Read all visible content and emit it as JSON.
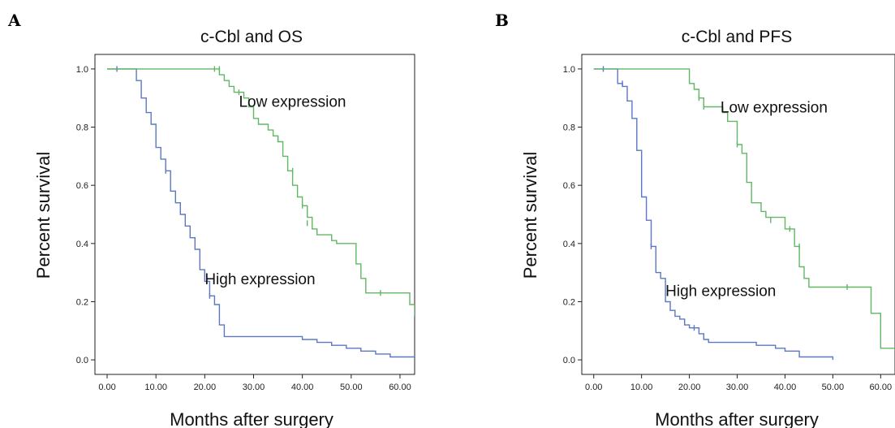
{
  "chart_data": [
    {
      "panel_label": "A",
      "type": "line",
      "title": "c-Cbl and OS",
      "xlabel": "Months after surgery",
      "ylabel": "Percent survival",
      "xlim": [
        -2.5,
        63
      ],
      "ylim": [
        -0.05,
        1.05
      ],
      "xticks": [
        "0.00",
        "10.00",
        "20.00",
        "30.00",
        "40.00",
        "50.00",
        "60.00"
      ],
      "yticks": [
        "0.0",
        "0.2",
        "0.4",
        "0.6",
        "0.8",
        "1.0"
      ],
      "series": [
        {
          "name": "High expression",
          "color": "#5b78c6",
          "label_at": [
            20,
            0.26
          ],
          "points": [
            [
              0,
              1.0
            ],
            [
              6,
              1.0
            ],
            [
              6,
              0.96
            ],
            [
              7,
              0.96
            ],
            [
              7,
              0.9
            ],
            [
              8,
              0.9
            ],
            [
              8,
              0.85
            ],
            [
              9,
              0.85
            ],
            [
              9,
              0.81
            ],
            [
              10,
              0.81
            ],
            [
              10,
              0.73
            ],
            [
              11,
              0.73
            ],
            [
              11,
              0.69
            ],
            [
              12,
              0.69
            ],
            [
              12,
              0.65
            ],
            [
              13,
              0.65
            ],
            [
              13,
              0.58
            ],
            [
              14,
              0.58
            ],
            [
              14,
              0.54
            ],
            [
              15,
              0.54
            ],
            [
              15,
              0.5
            ],
            [
              16,
              0.5
            ],
            [
              16,
              0.46
            ],
            [
              17,
              0.46
            ],
            [
              17,
              0.42
            ],
            [
              18,
              0.42
            ],
            [
              18,
              0.38
            ],
            [
              19,
              0.38
            ],
            [
              19,
              0.31
            ],
            [
              20,
              0.31
            ],
            [
              20,
              0.27
            ],
            [
              21,
              0.27
            ],
            [
              21,
              0.22
            ],
            [
              22,
              0.22
            ],
            [
              22,
              0.19
            ],
            [
              23,
              0.19
            ],
            [
              23,
              0.12
            ],
            [
              24,
              0.12
            ],
            [
              24,
              0.08
            ],
            [
              40,
              0.08
            ],
            [
              40,
              0.07
            ],
            [
              43,
              0.07
            ],
            [
              43,
              0.06
            ],
            [
              46,
              0.06
            ],
            [
              46,
              0.05
            ],
            [
              49,
              0.05
            ],
            [
              49,
              0.04
            ],
            [
              52,
              0.04
            ],
            [
              52,
              0.03
            ],
            [
              55,
              0.03
            ],
            [
              55,
              0.02
            ],
            [
              58,
              0.02
            ],
            [
              58,
              0.01
            ],
            [
              63,
              0.01
            ]
          ],
          "censored": [
            [
              2,
              1.0
            ],
            [
              12,
              0.65
            ],
            [
              21,
              0.22
            ]
          ]
        },
        {
          "name": "Low expression",
          "color": "#62b764",
          "label_at": [
            27,
            0.87
          ],
          "points": [
            [
              0,
              1.0
            ],
            [
              23,
              1.0
            ],
            [
              23,
              0.98
            ],
            [
              24,
              0.98
            ],
            [
              24,
              0.96
            ],
            [
              25,
              0.96
            ],
            [
              25,
              0.94
            ],
            [
              26,
              0.94
            ],
            [
              26,
              0.92
            ],
            [
              28,
              0.92
            ],
            [
              28,
              0.9
            ],
            [
              29,
              0.9
            ],
            [
              29,
              0.87
            ],
            [
              30,
              0.87
            ],
            [
              30,
              0.83
            ],
            [
              31,
              0.83
            ],
            [
              31,
              0.81
            ],
            [
              33,
              0.81
            ],
            [
              33,
              0.79
            ],
            [
              34,
              0.79
            ],
            [
              34,
              0.77
            ],
            [
              35,
              0.77
            ],
            [
              35,
              0.75
            ],
            [
              36,
              0.75
            ],
            [
              36,
              0.7
            ],
            [
              37,
              0.7
            ],
            [
              37,
              0.65
            ],
            [
              38,
              0.65
            ],
            [
              38,
              0.6
            ],
            [
              39,
              0.6
            ],
            [
              39,
              0.56
            ],
            [
              40,
              0.56
            ],
            [
              40,
              0.53
            ],
            [
              41,
              0.53
            ],
            [
              41,
              0.49
            ],
            [
              42,
              0.49
            ],
            [
              42,
              0.45
            ],
            [
              43,
              0.45
            ],
            [
              43,
              0.43
            ],
            [
              46,
              0.43
            ],
            [
              46,
              0.41
            ],
            [
              47,
              0.41
            ],
            [
              47,
              0.4
            ],
            [
              51,
              0.4
            ],
            [
              51,
              0.33
            ],
            [
              52,
              0.33
            ],
            [
              52,
              0.28
            ],
            [
              53,
              0.28
            ],
            [
              53,
              0.23
            ],
            [
              62,
              0.23
            ],
            [
              62,
              0.19
            ],
            [
              63,
              0.19
            ],
            [
              63,
              0.15
            ]
          ],
          "censored": [
            [
              22,
              1.0
            ],
            [
              23,
              1.0
            ],
            [
              27,
              0.92
            ],
            [
              35,
              0.76
            ],
            [
              38,
              0.65
            ],
            [
              40,
              0.53
            ],
            [
              41,
              0.47
            ],
            [
              56,
              0.23
            ]
          ]
        }
      ]
    },
    {
      "panel_label": "B",
      "type": "line",
      "title": "c-Cbl and  PFS",
      "xlabel": "Months after surgery",
      "ylabel": "Percent survival",
      "xlim": [
        -2.5,
        63
      ],
      "ylim": [
        -0.05,
        1.05
      ],
      "xticks": [
        "0.00",
        "10.00",
        "20.00",
        "30.00",
        "40.00",
        "50.00",
        "60.00"
      ],
      "yticks": [
        "0.0",
        "0.2",
        "0.4",
        "0.6",
        "0.8",
        "1.0"
      ],
      "series": [
        {
          "name": "High expression",
          "color": "#5b78c6",
          "label_at": [
            15,
            0.22
          ],
          "points": [
            [
              0,
              1.0
            ],
            [
              5,
              1.0
            ],
            [
              5,
              0.95
            ],
            [
              6,
              0.95
            ],
            [
              6,
              0.94
            ],
            [
              7,
              0.94
            ],
            [
              7,
              0.89
            ],
            [
              8,
              0.89
            ],
            [
              8,
              0.83
            ],
            [
              9,
              0.83
            ],
            [
              9,
              0.72
            ],
            [
              10,
              0.72
            ],
            [
              10,
              0.56
            ],
            [
              11,
              0.56
            ],
            [
              11,
              0.48
            ],
            [
              12,
              0.48
            ],
            [
              12,
              0.39
            ],
            [
              13,
              0.39
            ],
            [
              13,
              0.3
            ],
            [
              14,
              0.3
            ],
            [
              14,
              0.28
            ],
            [
              15,
              0.28
            ],
            [
              15,
              0.2
            ],
            [
              16,
              0.2
            ],
            [
              16,
              0.17
            ],
            [
              17,
              0.17
            ],
            [
              17,
              0.15
            ],
            [
              18,
              0.15
            ],
            [
              18,
              0.14
            ],
            [
              19,
              0.14
            ],
            [
              19,
              0.12
            ],
            [
              20,
              0.12
            ],
            [
              20,
              0.11
            ],
            [
              22,
              0.11
            ],
            [
              22,
              0.09
            ],
            [
              23,
              0.09
            ],
            [
              23,
              0.07
            ],
            [
              24,
              0.07
            ],
            [
              24,
              0.06
            ],
            [
              34,
              0.06
            ],
            [
              34,
              0.05
            ],
            [
              38,
              0.05
            ],
            [
              38,
              0.04
            ],
            [
              40,
              0.04
            ],
            [
              40,
              0.03
            ],
            [
              43,
              0.03
            ],
            [
              43,
              0.01
            ],
            [
              50,
              0.01
            ],
            [
              50,
              0.0
            ]
          ],
          "censored": [
            [
              2,
              1.0
            ],
            [
              6,
              0.95
            ],
            [
              12,
              0.39
            ],
            [
              21,
              0.11
            ]
          ]
        },
        {
          "name": "Low expression",
          "color": "#62b764",
          "label_at": [
            26.5,
            0.85
          ],
          "points": [
            [
              0,
              1.0
            ],
            [
              20,
              1.0
            ],
            [
              20,
              0.95
            ],
            [
              21,
              0.95
            ],
            [
              21,
              0.93
            ],
            [
              22,
              0.93
            ],
            [
              22,
              0.9
            ],
            [
              23,
              0.9
            ],
            [
              23,
              0.87
            ],
            [
              27,
              0.87
            ],
            [
              27,
              0.85
            ],
            [
              28,
              0.85
            ],
            [
              28,
              0.82
            ],
            [
              30,
              0.82
            ],
            [
              30,
              0.74
            ],
            [
              31,
              0.74
            ],
            [
              31,
              0.71
            ],
            [
              32,
              0.71
            ],
            [
              32,
              0.61
            ],
            [
              33,
              0.61
            ],
            [
              33,
              0.54
            ],
            [
              35,
              0.54
            ],
            [
              35,
              0.51
            ],
            [
              36,
              0.51
            ],
            [
              36,
              0.49
            ],
            [
              40,
              0.49
            ],
            [
              40,
              0.45
            ],
            [
              42,
              0.45
            ],
            [
              42,
              0.39
            ],
            [
              43,
              0.39
            ],
            [
              43,
              0.32
            ],
            [
              44,
              0.32
            ],
            [
              44,
              0.28
            ],
            [
              45,
              0.28
            ],
            [
              45,
              0.25
            ],
            [
              58,
              0.25
            ],
            [
              58,
              0.16
            ],
            [
              60,
              0.16
            ],
            [
              60,
              0.04
            ],
            [
              63,
              0.04
            ]
          ],
          "censored": [
            [
              22,
              0.9
            ],
            [
              23,
              0.87
            ],
            [
              30,
              0.74
            ],
            [
              37,
              0.48
            ],
            [
              41,
              0.45
            ],
            [
              43,
              0.39
            ],
            [
              53,
              0.25
            ]
          ]
        }
      ]
    }
  ]
}
